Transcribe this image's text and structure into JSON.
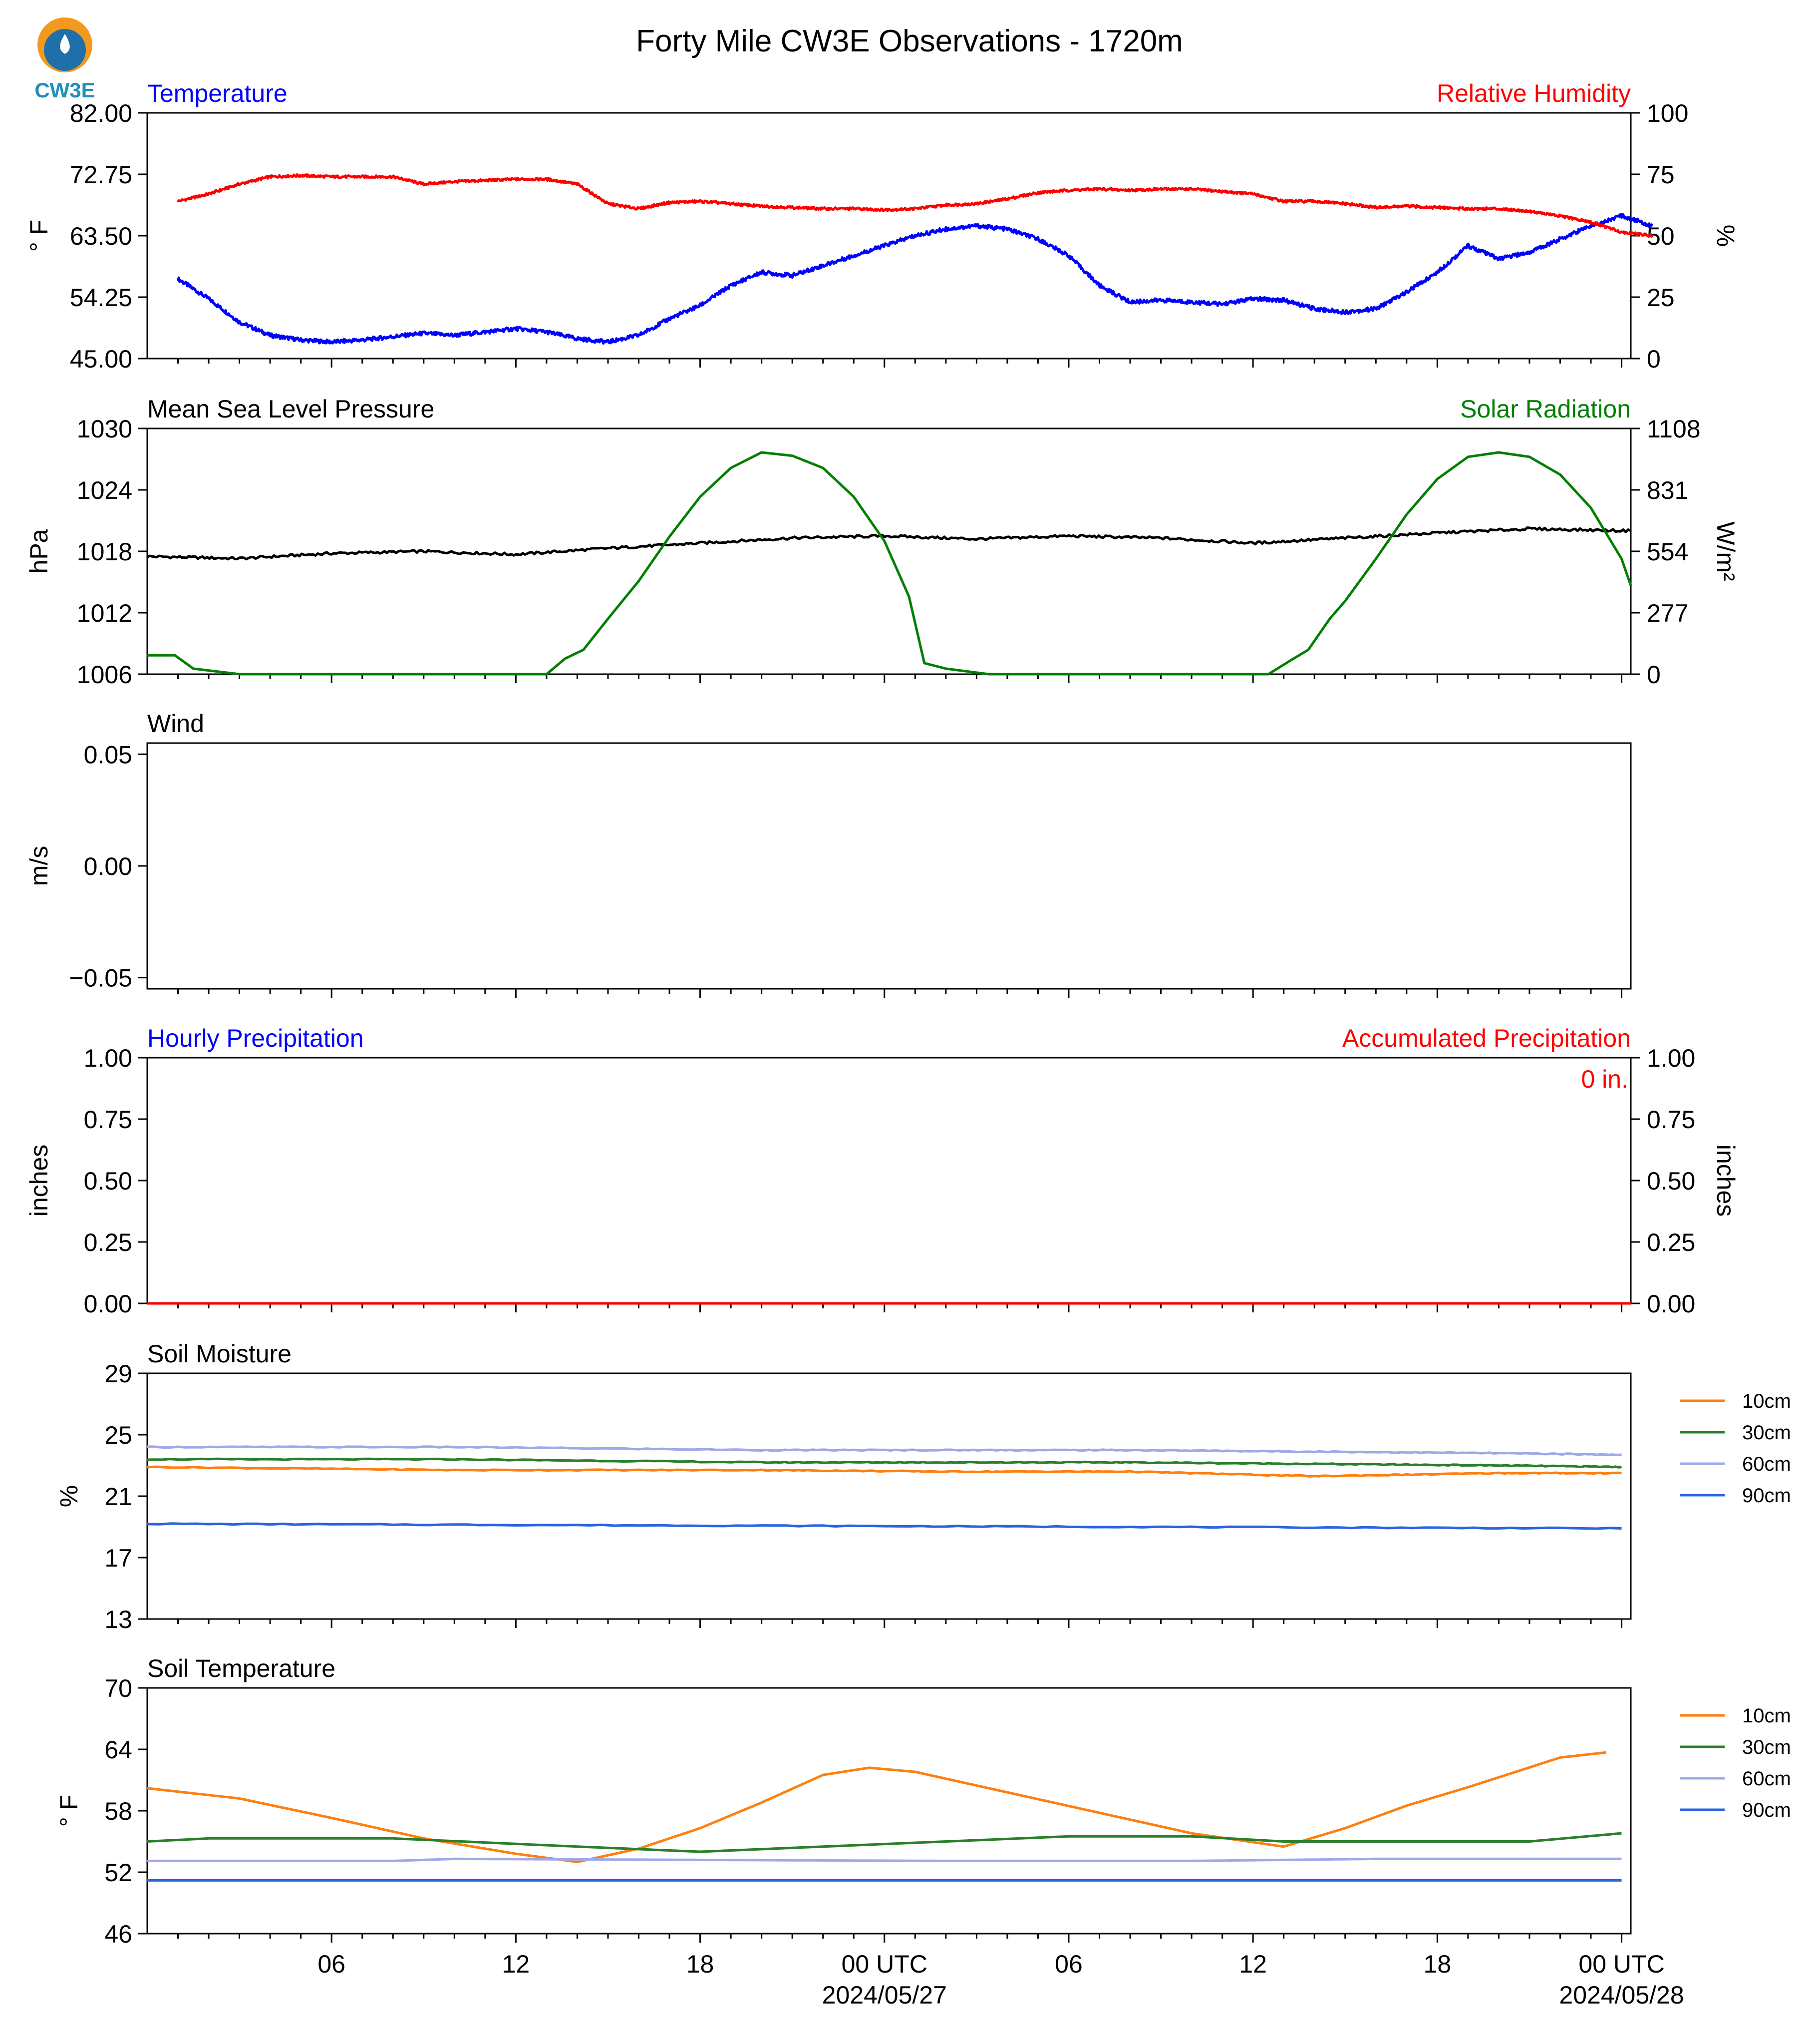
{
  "page": {
    "title": "Forty Mile CW3E Observations - 1720m",
    "logo_text": "CW3E",
    "colors": {
      "blue": "#0000ff",
      "red": "#ff0000",
      "green": "#007f00",
      "black": "#000000",
      "orange": "#ff7f0e",
      "darkgreen": "#2a7f2a",
      "lavender": "#a0a8e8",
      "royal": "#2a64e0"
    }
  },
  "x_axis": {
    "tick_labels": [
      "06",
      "12",
      "18",
      "00 UTC",
      "06",
      "12",
      "18",
      "00 UTC"
    ],
    "date_labels": [
      "2024/05/27",
      "2024/05/28"
    ]
  },
  "chart_data": [
    {
      "id": "temp_rh",
      "type": "line",
      "left_title": "Temperature",
      "right_title": "Relative Humidity",
      "ylabel_left": "° F",
      "ylabel_right": "%",
      "yticks_left": [
        "82.00",
        "72.75",
        "63.50",
        "54.25",
        "45.00"
      ],
      "ylim_left": [
        45,
        82
      ],
      "yticks_right": [
        "100",
        "75",
        "50",
        "25",
        "0"
      ],
      "ylim_right": [
        0,
        100
      ],
      "series": [
        {
          "name": "Temperature",
          "axis": "left",
          "color": "#0000ff",
          "x": [
            1,
            2,
            3,
            4,
            5,
            6,
            7,
            8,
            9,
            10,
            11,
            12,
            13,
            14,
            15,
            16,
            17,
            18,
            19,
            20,
            21,
            22,
            23,
            24,
            25,
            26,
            27,
            28,
            29,
            30,
            31,
            32,
            33,
            34,
            35,
            36,
            37,
            38,
            39,
            40,
            41,
            42,
            43,
            44,
            45,
            46,
            47,
            48,
            49
          ],
          "y": [
            57,
            54,
            50.5,
            48.5,
            47.8,
            47.5,
            47.8,
            48.3,
            48.8,
            48.5,
            49,
            49.5,
            49,
            48,
            47.5,
            48.5,
            51,
            53,
            56,
            58,
            57.5,
            59,
            60.5,
            62,
            63.5,
            64.5,
            65,
            64.5,
            63,
            60.5,
            56,
            53.5,
            53.8,
            53.5,
            53.2,
            54,
            53.8,
            52.5,
            52,
            52.5,
            55,
            58,
            62,
            60,
            61,
            63,
            65,
            66.5,
            65
          ]
        },
        {
          "name": "Relative Humidity",
          "axis": "right",
          "color": "#ff0000",
          "x": [
            1,
            2,
            3,
            4,
            5,
            6,
            7,
            8,
            9,
            10,
            11,
            12,
            13,
            14,
            15,
            16,
            17,
            18,
            19,
            20,
            21,
            22,
            23,
            24,
            25,
            26,
            27,
            28,
            29,
            30,
            31,
            32,
            33,
            34,
            35,
            36,
            37,
            38,
            39,
            40,
            41,
            42,
            43,
            44,
            45,
            46,
            47,
            48,
            49
          ],
          "y": [
            64,
            67,
            71,
            74,
            74.5,
            74,
            74,
            74,
            71,
            72,
            72.5,
            73,
            73,
            71,
            63,
            61,
            63.5,
            64,
            63,
            62,
            61.5,
            61,
            61,
            60.5,
            61,
            62.5,
            63,
            65,
            67.5,
            68.5,
            69,
            68.5,
            69,
            69,
            68,
            67,
            64,
            64,
            63,
            61.5,
            62,
            61.5,
            61,
            61,
            60,
            58,
            55.5,
            51.5,
            50
          ]
        }
      ]
    },
    {
      "id": "pressure_solar",
      "type": "line",
      "left_title": "Mean Sea Level Pressure",
      "right_title": "Solar Radiation",
      "ylabel_left": "hPa",
      "ylabel_right": "W/m²",
      "yticks_left": [
        "1030",
        "1024",
        "1018",
        "1012",
        "1006"
      ],
      "ylim_left": [
        1006,
        1030
      ],
      "yticks_right": [
        "1108",
        "831",
        "554",
        "277",
        "0"
      ],
      "ylim_right": [
        0,
        1108
      ],
      "series": [
        {
          "name": "Mean Sea Level Pressure",
          "axis": "left",
          "color": "#000000",
          "x": [
            0,
            3,
            6,
            9,
            12,
            15,
            18,
            21,
            24,
            27,
            30,
            33,
            36,
            39,
            42,
            45,
            48.3
          ],
          "y": [
            1017.5,
            1017.3,
            1017.8,
            1018,
            1017.7,
            1018.3,
            1018.8,
            1019.3,
            1019.5,
            1019.2,
            1019.5,
            1019.3,
            1018.8,
            1019.3,
            1019.8,
            1020.2,
            1020
          ]
        },
        {
          "name": "Solar Radiation",
          "axis": "right",
          "color": "#007f00",
          "x": [
            0,
            0.9,
            1.5,
            3,
            6,
            9,
            12,
            13,
            13.6,
            14.2,
            15,
            16,
            17,
            18,
            19,
            20,
            21,
            22,
            23,
            24,
            24.8,
            25.3,
            26,
            27.4,
            30,
            33,
            36.5,
            37.2,
            37.8,
            38.5,
            39,
            40,
            41,
            42,
            43,
            44,
            45,
            46,
            47,
            48,
            48.3
          ],
          "y": [
            85,
            85,
            25,
            0,
            0,
            0,
            0,
            0,
            70,
            110,
            250,
            420,
            620,
            800,
            930,
            1000,
            985,
            930,
            800,
            600,
            350,
            50,
            25,
            0,
            0,
            0,
            0,
            60,
            110,
            250,
            330,
            520,
            720,
            880,
            980,
            1000,
            980,
            900,
            750,
            520,
            400
          ]
        }
      ]
    },
    {
      "id": "wind",
      "type": "line",
      "left_title": "Wind",
      "ylabel_left": "m/s",
      "yticks_left": [
        "0.05",
        "0.00",
        "−0.05"
      ],
      "ylim_left": [
        -0.055,
        0.055
      ],
      "series": []
    },
    {
      "id": "precip",
      "type": "line",
      "left_title": "Hourly Precipitation",
      "right_title": "Accumulated Precipitation",
      "annotation": "0 in.",
      "ylabel_left": "inches",
      "ylabel_right": "inches",
      "yticks_left": [
        "1.00",
        "0.75",
        "0.50",
        "0.25",
        "0.00"
      ],
      "ylim_left": [
        0,
        1
      ],
      "yticks_right": [
        "1.00",
        "0.75",
        "0.50",
        "0.25",
        "0.00"
      ],
      "ylim_right": [
        0,
        1
      ],
      "series": [
        {
          "name": "Hourly Precipitation",
          "axis": "left",
          "color": "#0000ff",
          "x": [
            0,
            48.3
          ],
          "y": [
            0,
            0
          ]
        },
        {
          "name": "Accumulated Precipitation",
          "axis": "right",
          "color": "#ff0000",
          "x": [
            0,
            48.3
          ],
          "y": [
            0,
            0
          ]
        }
      ]
    },
    {
      "id": "soil_moisture",
      "type": "line",
      "left_title": "Soil Moisture",
      "ylabel_left": "%",
      "yticks_left": [
        "29",
        "25",
        "21",
        "17",
        "13"
      ],
      "ylim_left": [
        13,
        29
      ],
      "legend": [
        "10cm",
        "30cm",
        "60cm",
        "90cm"
      ],
      "series": [
        {
          "name": "10cm",
          "axis": "left",
          "color": "#ff7f0e",
          "x": [
            0,
            10,
            20,
            26,
            32,
            38,
            44,
            48
          ],
          "y": [
            22.9,
            22.7,
            22.7,
            22.6,
            22.6,
            22.3,
            22.5,
            22.5
          ]
        },
        {
          "name": "30cm",
          "axis": "left",
          "color": "#2a7f2a",
          "x": [
            0,
            10,
            20,
            26,
            32,
            38,
            44,
            48
          ],
          "y": [
            23.4,
            23.4,
            23.2,
            23.2,
            23.2,
            23.1,
            23.0,
            22.9
          ]
        },
        {
          "name": "60cm",
          "axis": "left",
          "color": "#a0a8e8",
          "x": [
            0,
            10,
            20,
            26,
            32,
            38,
            44,
            48
          ],
          "y": [
            24.2,
            24.2,
            24.0,
            24.0,
            24.0,
            23.9,
            23.8,
            23.7
          ]
        },
        {
          "name": "90cm",
          "axis": "left",
          "color": "#2a64e0",
          "x": [
            0,
            16,
            32,
            48
          ],
          "y": [
            19.2,
            19.1,
            19.0,
            18.9
          ]
        }
      ]
    },
    {
      "id": "soil_temp",
      "type": "line",
      "left_title": "Soil Temperature",
      "ylabel_left": "° F",
      "yticks_left": [
        "70",
        "64",
        "58",
        "52",
        "46"
      ],
      "ylim_left": [
        46,
        70
      ],
      "legend": [
        "10cm",
        "30cm",
        "60cm",
        "90cm"
      ],
      "series": [
        {
          "name": "10cm",
          "axis": "left",
          "color": "#ff7f0e",
          "x": [
            0,
            3,
            6,
            9,
            12,
            14,
            16,
            18,
            20,
            22,
            23.5,
            25,
            28,
            31,
            34,
            37,
            39,
            41,
            43,
            46,
            47.5
          ],
          "y": [
            60.2,
            59.2,
            57.3,
            55.3,
            53.8,
            53.0,
            54.3,
            56.3,
            58.8,
            61.5,
            62.2,
            61.8,
            59.8,
            57.8,
            55.8,
            54.5,
            56.3,
            58.5,
            60.3,
            63.2,
            63.7
          ]
        },
        {
          "name": "30cm",
          "axis": "left",
          "color": "#2a7f2a",
          "x": [
            0,
            2,
            8,
            14,
            18,
            22,
            26,
            30,
            34,
            37,
            41,
            45,
            48
          ],
          "y": [
            55.0,
            55.3,
            55.3,
            54.5,
            54.0,
            54.5,
            55.0,
            55.5,
            55.5,
            55.0,
            55.0,
            55.0,
            55.8
          ]
        },
        {
          "name": "60cm",
          "axis": "left",
          "color": "#a0a8e8",
          "x": [
            0,
            8,
            10,
            18,
            26,
            34,
            40,
            48
          ],
          "y": [
            53.1,
            53.1,
            53.3,
            53.2,
            53.1,
            53.1,
            53.3,
            53.3
          ]
        },
        {
          "name": "90cm",
          "axis": "left",
          "color": "#2a64e0",
          "x": [
            0,
            48
          ],
          "y": [
            51.2,
            51.2
          ]
        }
      ]
    }
  ]
}
